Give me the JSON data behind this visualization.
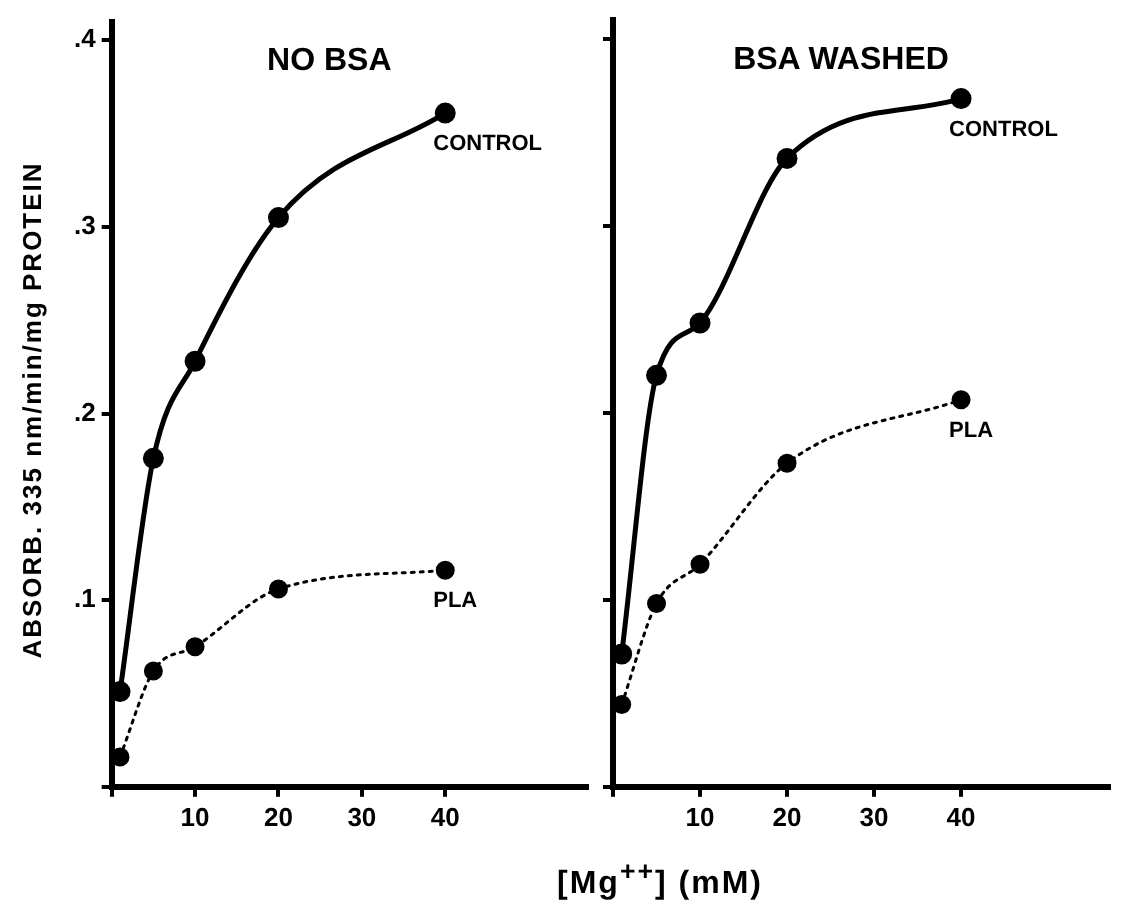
{
  "chart_data": [
    {
      "type": "line",
      "title": "NO BSA",
      "xlabel": "[Mg$^{++}$] (mM)",
      "ylabel": "ABSORB. 335 nm/min/mg PROTEIN",
      "x": [
        1,
        5,
        10,
        20,
        40
      ],
      "xlim": [
        0,
        57
      ],
      "xticks": [
        {
          "value": 0,
          "label": null
        },
        10,
        20,
        30,
        40
      ],
      "ylim": [
        0,
        0.41
      ],
      "yticks": [
        {
          "value": 0,
          "label": null
        },
        {
          "value": 0.1,
          "label": ".1"
        },
        {
          "value": 0.2,
          "label": ".2"
        },
        {
          "value": 0.3,
          "label": ".3"
        },
        {
          "value": 0.4,
          "label": ".4"
        }
      ],
      "marker": "circle",
      "series": [
        {
          "name": "CONTROL",
          "color": "#000000",
          "line_style": "solid",
          "values": [
            0.051,
            0.176,
            0.228,
            0.305,
            0.361
          ]
        },
        {
          "name": "PLA",
          "color": "#000000",
          "line_style": "dotted",
          "values": [
            0.016,
            0.062,
            0.075,
            0.106,
            0.116
          ]
        }
      ]
    },
    {
      "type": "line",
      "title": "BSA WASHED",
      "x": [
        1,
        5,
        10,
        20,
        40
      ],
      "xlim": [
        0,
        57
      ],
      "xticks": [
        {
          "value": 0,
          "label": null
        },
        10,
        20,
        30,
        40
      ],
      "ylim": [
        0,
        0.41
      ],
      "yticks": [
        {
          "value": 0,
          "label": null
        },
        {
          "value": 0.1,
          "label": null
        },
        {
          "value": 0.2,
          "label": null
        },
        {
          "value": 0.3,
          "label": null
        },
        {
          "value": 0.4,
          "label": null
        }
      ],
      "tick_labels": "x",
      "marker": "circle",
      "series": [
        {
          "name": "CONTROL",
          "color": "#000000",
          "line_style": "solid",
          "values": [
            0.071,
            0.22,
            0.248,
            0.336,
            0.368
          ]
        },
        {
          "name": "PLA",
          "color": "#000000",
          "line_style": "dotted",
          "values": [
            0.044,
            0.098,
            0.119,
            0.173,
            0.207
          ]
        }
      ]
    }
  ]
}
